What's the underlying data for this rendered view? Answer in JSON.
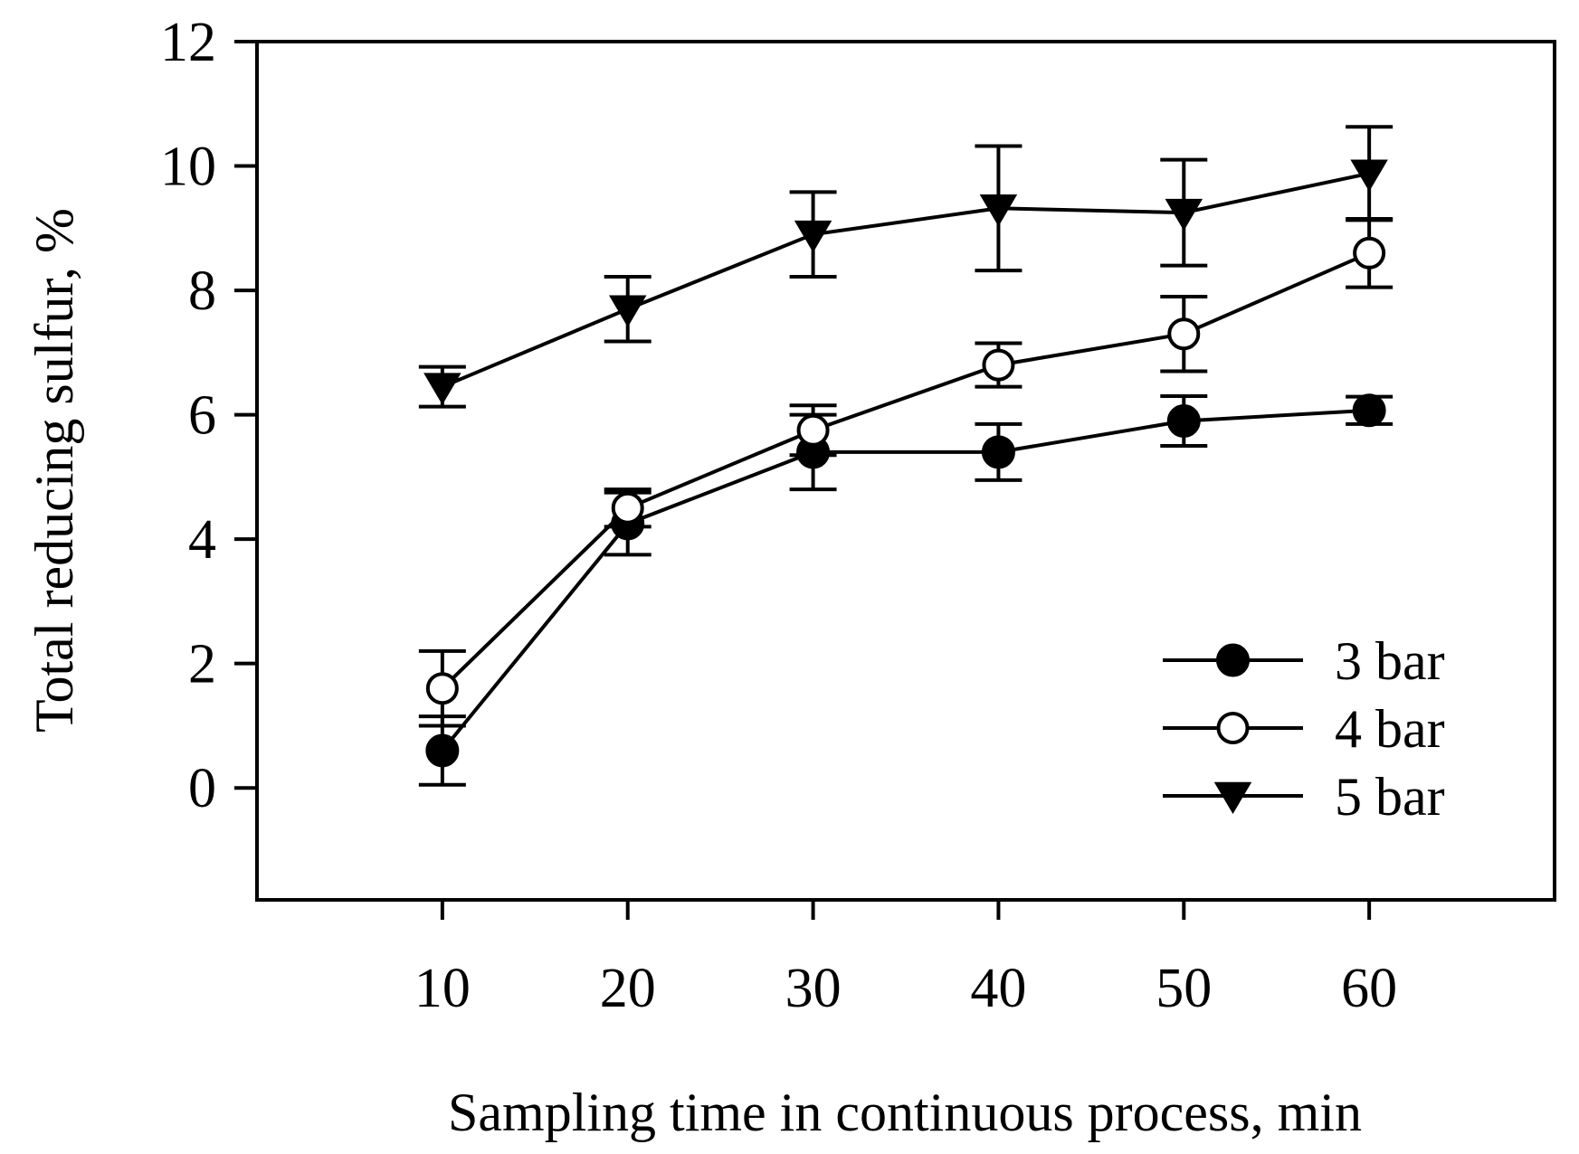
{
  "chart_data": {
    "type": "line",
    "title": "",
    "xlabel": "Sampling time in continuous process, min",
    "ylabel": "Total reducing sulfur, %",
    "x": [
      10,
      20,
      30,
      40,
      50,
      60
    ],
    "xlim": [
      0,
      70
    ],
    "ylim": [
      -1.8,
      12
    ],
    "xticks": [
      10,
      20,
      30,
      40,
      50,
      60
    ],
    "yticks": [
      0,
      2,
      4,
      6,
      8,
      10,
      12
    ],
    "grid": false,
    "legend_position": "lower-right",
    "series": [
      {
        "name": "3 bar",
        "marker": "filled-circle",
        "values": [
          0.6,
          4.25,
          5.4,
          5.4,
          5.9,
          6.07
        ],
        "errors": [
          0.55,
          0.5,
          0.6,
          0.45,
          0.4,
          0.22
        ]
      },
      {
        "name": "4 bar",
        "marker": "open-circle",
        "values": [
          1.6,
          4.5,
          5.75,
          6.8,
          7.3,
          8.6
        ],
        "errors": [
          0.6,
          0.3,
          0.4,
          0.35,
          0.6,
          0.55
        ]
      },
      {
        "name": "5 bar",
        "marker": "filled-triangle-down",
        "values": [
          6.45,
          7.7,
          8.9,
          9.32,
          9.25,
          9.88
        ],
        "errors": [
          0.32,
          0.52,
          0.68,
          1.0,
          0.85,
          0.75
        ]
      }
    ]
  }
}
